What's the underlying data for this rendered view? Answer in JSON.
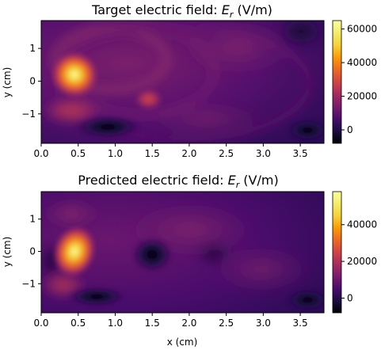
{
  "chart_data": [
    {
      "type": "heatmap",
      "title_prefix": "Target electric field: ",
      "title_symbol": "E",
      "title_subscript": "r",
      "title_suffix": " (V/m)",
      "xlabel": "",
      "ylabel": "y (cm)",
      "xlim": [
        0,
        3.82
      ],
      "ylim": [
        -1.9,
        1.85
      ],
      "xticks": [
        "0.0",
        "0.5",
        "1.0",
        "1.5",
        "2.0",
        "2.5",
        "3.0",
        "3.5"
      ],
      "yticks": [
        "1",
        "0",
        "−1"
      ],
      "colormap": "inferno",
      "colorbar": {
        "min": -8000,
        "max": 65000,
        "ticks": [
          "60000",
          "40000",
          "20000",
          "0"
        ]
      },
      "features": [
        {
          "x": 0.45,
          "y": 0.2,
          "rx": 0.32,
          "ry": 0.7,
          "value": 62000
        },
        {
          "x": 0.9,
          "y": -1.4,
          "rx": 0.45,
          "ry": 0.35,
          "value": -7000
        },
        {
          "x": 1.45,
          "y": -0.55,
          "rx": 0.2,
          "ry": 0.35,
          "value": 20000
        },
        {
          "x": 3.6,
          "y": -1.5,
          "rx": 0.3,
          "ry": 0.35,
          "value": -3000
        }
      ]
    },
    {
      "type": "heatmap",
      "title_prefix": "Predicted electric field: ",
      "title_symbol": "E",
      "title_subscript": "r",
      "title_suffix": " (V/m)",
      "xlabel": "x (cm)",
      "ylabel": "y (cm)",
      "xlim": [
        0,
        3.82
      ],
      "ylim": [
        -1.9,
        1.85
      ],
      "xticks": [
        "0.0",
        "0.5",
        "1.0",
        "1.5",
        "2.0",
        "2.5",
        "3.0",
        "3.5"
      ],
      "yticks": [
        "1",
        "0",
        "−1"
      ],
      "colormap": "inferno",
      "colorbar": {
        "min": -8000,
        "max": 58000,
        "ticks": [
          "40000",
          "20000",
          "0"
        ]
      },
      "features": [
        {
          "x": 0.45,
          "y": 0.0,
          "rx": 0.28,
          "ry": 0.8,
          "value": 55000
        },
        {
          "x": 0.75,
          "y": -1.4,
          "rx": 0.4,
          "ry": 0.3,
          "value": -5000
        },
        {
          "x": 1.5,
          "y": -0.1,
          "rx": 0.28,
          "ry": 0.55,
          "value": -4000
        },
        {
          "x": 3.6,
          "y": -1.5,
          "rx": 0.3,
          "ry": 0.35,
          "value": -2000
        }
      ]
    }
  ]
}
